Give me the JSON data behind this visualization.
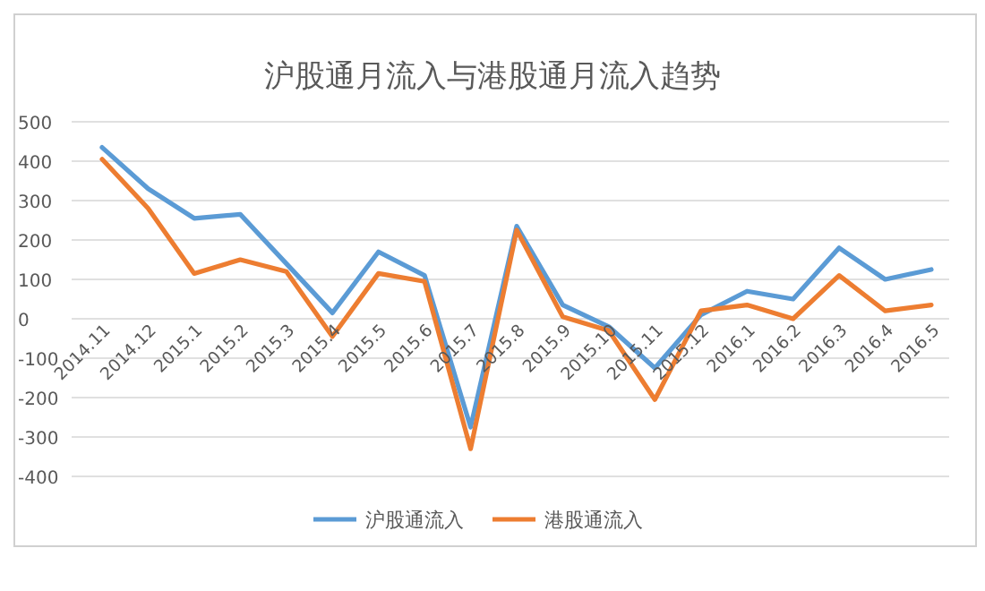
{
  "chart_data": {
    "type": "line",
    "title": "沪股通月流入与港股通月流入趋势",
    "categories": [
      "2014.11",
      "2014.12",
      "2015.1",
      "2015.2",
      "2015.3",
      "2015.4",
      "2015.5",
      "2015.6",
      "2015.7",
      "2015.8",
      "2015.9",
      "2015.10",
      "2015.11",
      "2015.12",
      "2016.1",
      "2016.2",
      "2016.3",
      "2016.4",
      "2016.5"
    ],
    "series": [
      {
        "name": "沪股通流入",
        "color": "#5b9bd5",
        "values": [
          435,
          330,
          255,
          265,
          140,
          15,
          170,
          110,
          -275,
          235,
          35,
          -20,
          -125,
          10,
          70,
          50,
          180,
          100,
          125
        ]
      },
      {
        "name": "港股通流入",
        "color": "#ed7d31",
        "values": [
          405,
          280,
          115,
          150,
          120,
          -45,
          115,
          95,
          -330,
          225,
          5,
          -30,
          -205,
          20,
          35,
          0,
          110,
          20,
          35
        ]
      }
    ],
    "ylim": [
      -400,
      500
    ],
    "yticks": [
      -400,
      -300,
      -200,
      -100,
      0,
      100,
      200,
      300,
      400,
      500
    ],
    "grid": "y",
    "legend": "bottom",
    "marker": "none",
    "line_style": "solid"
  }
}
